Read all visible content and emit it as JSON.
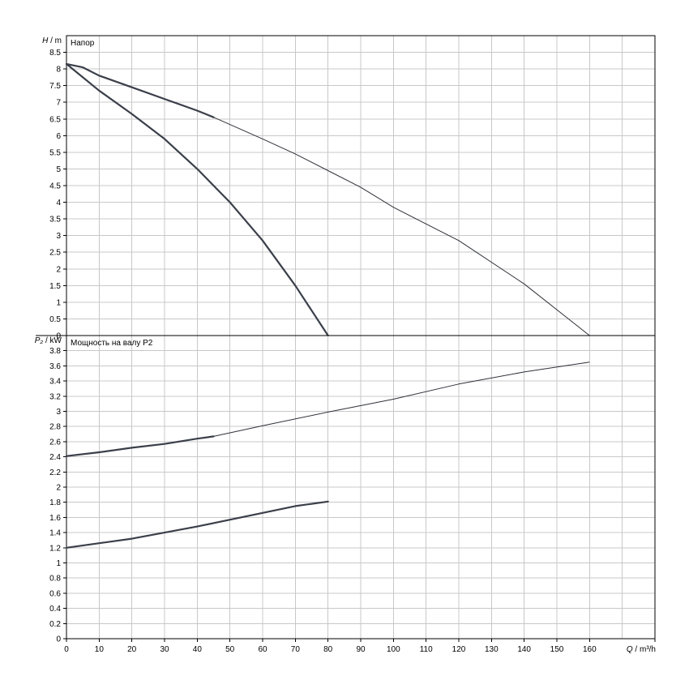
{
  "chart_data": [
    {
      "id": "head",
      "type": "line",
      "title": "Напор",
      "xlabel": "",
      "ylabel": "H / m",
      "ylabel_italic": "H",
      "ylabel_rest": " / m",
      "xlim": [
        0,
        180
      ],
      "ylim": [
        0,
        9
      ],
      "yticks": [
        0,
        0.5,
        1,
        1.5,
        2,
        2.5,
        3,
        3.5,
        4,
        4.5,
        5,
        5.5,
        6,
        6.5,
        7,
        7.5,
        8,
        8.5
      ],
      "ytick_labels": [
        "0",
        "0.5",
        "1",
        "1.5",
        "2",
        "2.5",
        "3",
        "3.5",
        "4",
        "4.5",
        "5",
        "5.5",
        "6",
        "6.5",
        "7",
        "7.5",
        "8",
        "8.5"
      ],
      "grid": true,
      "series": [
        {
          "style": "thick",
          "x": [
            0,
            10,
            20,
            30,
            40,
            50,
            60,
            70,
            80
          ],
          "y": [
            8.15,
            7.35,
            6.65,
            5.9,
            5.0,
            4.0,
            2.85,
            1.5,
            0
          ]
        },
        {
          "style": "thick",
          "x": [
            0,
            5,
            10,
            20,
            30,
            40,
            45
          ],
          "y": [
            8.15,
            8.05,
            7.8,
            7.45,
            7.1,
            6.75,
            6.55
          ]
        },
        {
          "style": "thin",
          "x": [
            45,
            60,
            70,
            80,
            90,
            100,
            120,
            140,
            160
          ],
          "y": [
            6.55,
            5.9,
            5.45,
            4.95,
            4.45,
            3.85,
            2.85,
            1.55,
            0
          ]
        }
      ]
    },
    {
      "id": "power",
      "type": "line",
      "title": "Мощность на валу P2",
      "xlabel": "Q / m³/h",
      "xlabel_italic": "Q",
      "xlabel_rest": " / m³/h",
      "ylabel": "P₂ / kW",
      "ylabel_italic": "P₂",
      "ylabel_rest": " / kW",
      "xlim": [
        0,
        180
      ],
      "ylim": [
        0,
        4
      ],
      "xticks": [
        0,
        10,
        20,
        30,
        40,
        50,
        60,
        70,
        80,
        90,
        100,
        110,
        120,
        130,
        140,
        150,
        160
      ],
      "xtick_labels": [
        "0",
        "10",
        "20",
        "30",
        "40",
        "50",
        "60",
        "70",
        "80",
        "90",
        "100",
        "110",
        "120",
        "130",
        "140",
        "150",
        "160"
      ],
      "yticks": [
        0,
        0.2,
        0.4,
        0.6,
        0.8,
        1,
        1.2,
        1.4,
        1.6,
        1.8,
        2,
        2.2,
        2.4,
        2.6,
        2.8,
        3,
        3.2,
        3.4,
        3.6,
        3.8
      ],
      "ytick_labels": [
        "0",
        "0.2",
        "0.4",
        "0.6",
        "0.8",
        "1",
        "1.2",
        "1.4",
        "1.6",
        "1.8",
        "2",
        "2.2",
        "2.4",
        "2.6",
        "2.8",
        "3",
        "3.2",
        "3.4",
        "3.6",
        "3.8"
      ],
      "grid": true,
      "series": [
        {
          "style": "thick",
          "x": [
            0,
            10,
            20,
            30,
            40,
            50,
            60,
            70,
            80
          ],
          "y": [
            1.2,
            1.26,
            1.32,
            1.4,
            1.48,
            1.57,
            1.66,
            1.75,
            1.81
          ]
        },
        {
          "style": "thick",
          "x": [
            0,
            10,
            20,
            30,
            40,
            45
          ],
          "y": [
            2.41,
            2.46,
            2.52,
            2.57,
            2.64,
            2.67
          ]
        },
        {
          "style": "thin",
          "x": [
            45,
            60,
            80,
            100,
            120,
            140,
            160
          ],
          "y": [
            2.67,
            2.81,
            2.99,
            3.16,
            3.36,
            3.52,
            3.65
          ]
        }
      ]
    }
  ]
}
